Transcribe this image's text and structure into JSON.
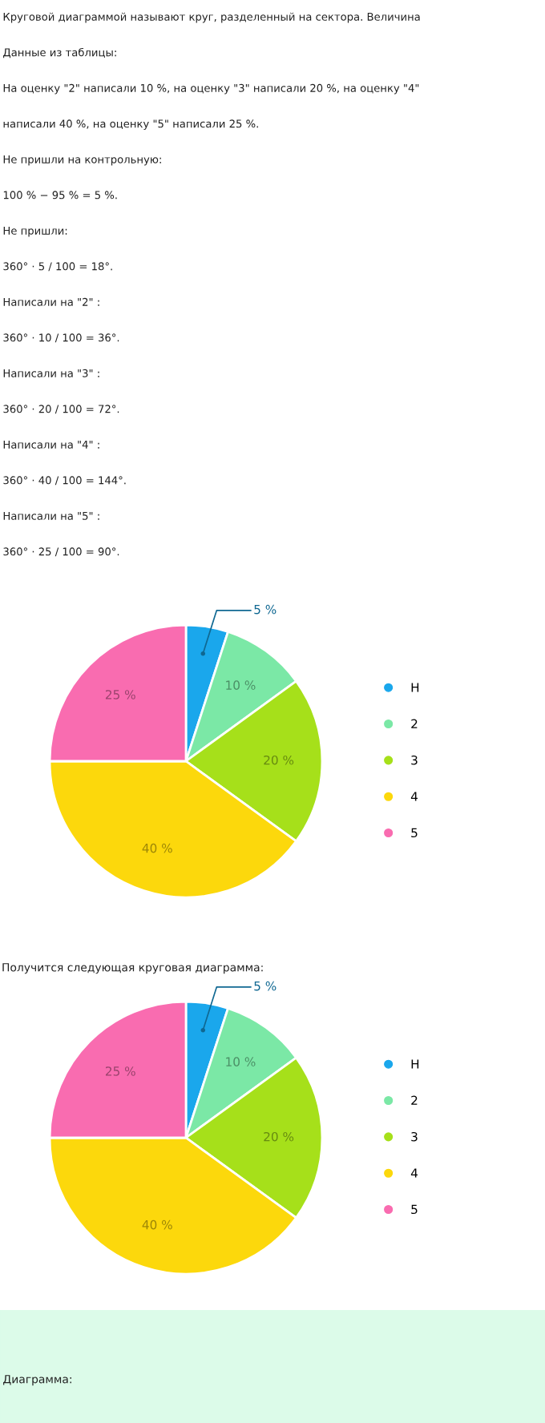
{
  "chart_data": [
    {
      "type": "other",
      "annotations": [
        "Круговой диаграммой называют круг, разделенный на сектора. Величина",
        "Данные из таблицы:",
        "На оценку \"2\" написали 10 %, на оценку \"3\" написали 20 %, на оценку \"4\"",
        "написали 40 %, на оценку \"5\" написали 25 %.",
        "Не пришли на контрольную:",
        "100 % − 95 % = 5 %.",
        "Не пришли:",
        "360° · 5 / 100 = 18°.",
        "Написали на \"2\" :",
        "360° · 10 / 100 = 36°.",
        "Написали на \"3\" :",
        "360° · 20 / 100 = 72°.",
        "Написали на \"4\" :",
        "360° · 40 / 100 = 144°.",
        "Написали на \"5\" :",
        "360° · 25 / 100 = 90°."
      ]
    },
    {
      "type": "pie",
      "categories": [
        "Н",
        "2",
        "3",
        "4",
        "5"
      ],
      "values": [
        5,
        10,
        20,
        40,
        25
      ],
      "colors": [
        "#1aa7ec",
        "#7be8a6",
        "#a6e01a",
        "#fcd80c",
        "#f96cb0"
      ],
      "value_labels": [
        "5 %",
        "10 %",
        "20 %",
        "40 %",
        "25 %"
      ],
      "legend": "right"
    },
    {
      "type": "pie",
      "title": "Получится следующая круговая диаграмма:",
      "categories": [
        "Н",
        "2",
        "3",
        "4",
        "5"
      ],
      "values": [
        5,
        10,
        20,
        40,
        25
      ],
      "colors": [
        "#1aa7ec",
        "#7be8a6",
        "#a6e01a",
        "#fcd80c",
        "#f96cb0"
      ],
      "value_labels": [
        "5 %",
        "10 %",
        "20 %",
        "40 %",
        "25 %"
      ],
      "legend": "right"
    },
    {
      "type": "other",
      "annotations": [
        "Диаграмма:"
      ]
    }
  ]
}
